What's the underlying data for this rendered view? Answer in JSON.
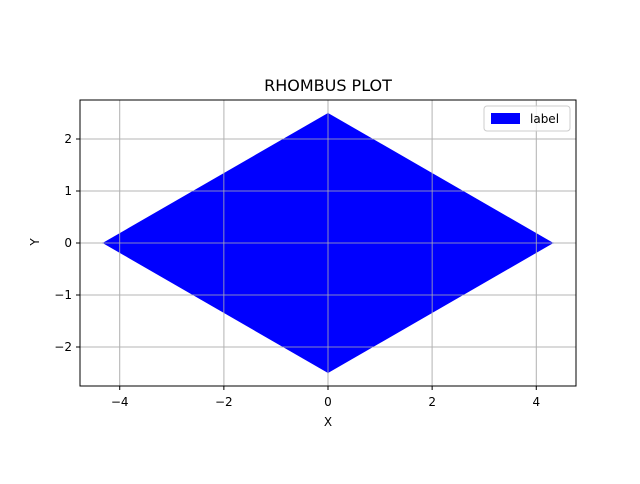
{
  "chart_data": {
    "type": "area",
    "title": "RHOMBUS PLOT",
    "xlabel": "X",
    "ylabel": "Y",
    "xlim": [
      -4.763,
      4.763
    ],
    "ylim": [
      -2.75,
      2.75
    ],
    "xticks": [
      -4,
      -2,
      0,
      2,
      4
    ],
    "yticks": [
      -2,
      -1,
      0,
      1,
      2
    ],
    "xtick_labels": [
      "−4",
      "−2",
      "0",
      "2",
      "4"
    ],
    "ytick_labels": [
      "−2",
      "−1",
      "0",
      "1",
      "2"
    ],
    "grid": true,
    "legend_position": "top-right",
    "series": [
      {
        "name": "label",
        "color": "#0000ff",
        "x": [
          4.33,
          0,
          -4.33,
          0
        ],
        "y": [
          0,
          2.5,
          0,
          -2.5
        ]
      }
    ]
  }
}
